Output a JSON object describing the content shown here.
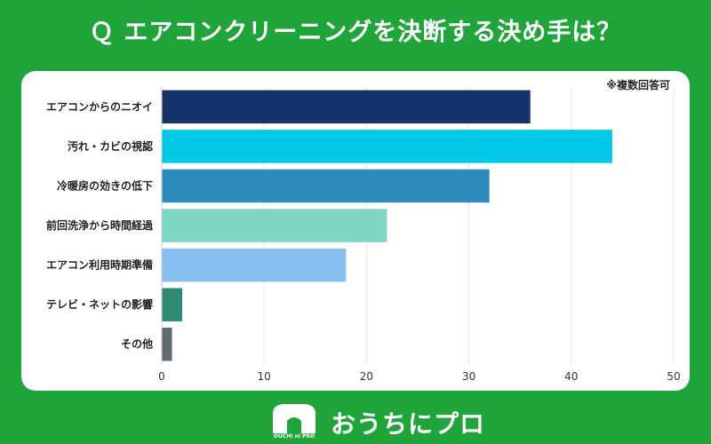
{
  "title": "Ｑ エアコンクリーニングを決断する決め手は？",
  "chart_data": {
    "type": "bar",
    "orientation": "horizontal",
    "title": "Ｑ エアコンクリーニングを決断する決め手は？",
    "note": "※複数回答可",
    "categories": [
      "エアコンからのニオイ",
      "汚れ・カビの視認",
      "冷暖房の効きの低下",
      "前回洗浄から時間経過",
      "エアコン利用時期準備",
      "テレビ・ネットの影響",
      "その他"
    ],
    "values": [
      36,
      44,
      32,
      22,
      18,
      2,
      1
    ],
    "colors": [
      "#16336b",
      "#00c8e4",
      "#2f8bbd",
      "#7fd6c4",
      "#86bff0",
      "#2f8a74",
      "#5e6b70"
    ],
    "xlim": [
      0,
      50
    ],
    "xticks": [
      0,
      10,
      20,
      30,
      40,
      50
    ],
    "grid": true
  },
  "footer": {
    "brand": "おうちにプロ",
    "logo_small": "OUCHI ni PRO"
  }
}
